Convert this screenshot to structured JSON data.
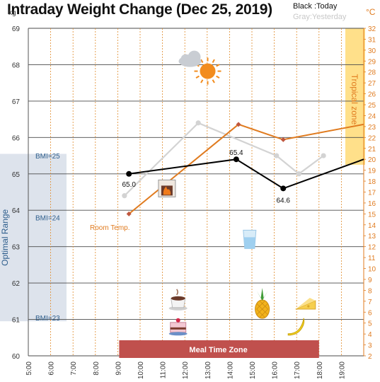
{
  "title": "Intraday Weight Change (Dec 25, 2019)",
  "legend": {
    "today": "Black :Today",
    "yesterday": "Gray:Yesterday"
  },
  "units": {
    "left": "kg",
    "right": "°C"
  },
  "colors": {
    "today": "#000000",
    "yesterday": "#d3d3d3",
    "room_temp": "#e07b1f",
    "room_temp_marker": "#c0573e",
    "optimal_band": "#dde3ec",
    "optimal_text": "#2e5e8c",
    "tropical_band": "#ffe08a",
    "tropical_text": "#e07b1f",
    "meal_band": "#c0504d",
    "grid": "#4a4a4a",
    "vgrid": "#e08a2a",
    "right_axis": "#e07b1f"
  },
  "chart_data": {
    "type": "line",
    "title": "Intraday Weight Change (Dec 25, 2019)",
    "x": {
      "tick_labels": [
        "5:00",
        "6:00",
        "7:00",
        "8:00",
        "9:00",
        "10:00",
        "11:00",
        "12:00",
        "13:00",
        "14:00",
        "15:00",
        "16:00",
        "17:00",
        "18:00",
        "19:00"
      ],
      "range_hours": [
        5,
        20
      ]
    },
    "y_left": {
      "label": "kg",
      "range": [
        60,
        69
      ],
      "ticks": [
        60,
        61,
        62,
        63,
        64,
        65,
        66,
        67,
        68,
        69
      ]
    },
    "y_right": {
      "label": "°C",
      "range": [
        2,
        32
      ]
    },
    "series": [
      {
        "name": "Black :Today",
        "axis": "left",
        "points": [
          [
            9.5,
            65.0
          ],
          [
            14.3,
            65.4
          ],
          [
            16.4,
            64.6
          ],
          [
            20,
            65.4
          ]
        ],
        "labels": [
          "65.0",
          "65.4",
          "64.6",
          ""
        ]
      },
      {
        "name": "Gray:Yesterday",
        "axis": "left",
        "points": [
          [
            9.3,
            64.4
          ],
          [
            12.6,
            66.4
          ],
          [
            16.1,
            65.5
          ],
          [
            17.1,
            65.0
          ],
          [
            18.2,
            65.5
          ]
        ]
      },
      {
        "name": "Room Temp.",
        "axis": "right",
        "points": [
          [
            9.5,
            15.0
          ],
          [
            14.4,
            23.2
          ],
          [
            16.4,
            21.8
          ],
          [
            20,
            23.2
          ]
        ]
      }
    ],
    "annotations": {
      "optimal_range": {
        "label": "Optimal Range",
        "y_range": [
          60.95,
          65.55
        ]
      },
      "bmi_lines": [
        {
          "label": "BMI=25",
          "y": 65.5
        },
        {
          "label": "BMI=24",
          "y": 63.8
        },
        {
          "label": "BMI=23",
          "y": 61.05
        }
      ],
      "tropical_zone": {
        "label": "Tropical zone",
        "c_range": [
          19.5,
          32
        ]
      },
      "meal_time_zone": {
        "label": "Meal Time Zone",
        "x_range": [
          9.0,
          18.0
        ]
      },
      "room_temp_label": "Room Temp."
    },
    "icons": [
      {
        "name": "weather-cloud-sun-icon",
        "x": 12.8,
        "y": 67.9
      },
      {
        "name": "fireplace-icon",
        "x": 11.2,
        "y": 64.6
      },
      {
        "name": "water-glass-icon",
        "x": 14.9,
        "y": 63.2
      },
      {
        "name": "coffee-cup-icon",
        "x": 11.7,
        "y": 61.5
      },
      {
        "name": "cake-icon",
        "x": 11.7,
        "y": 60.8
      },
      {
        "name": "pineapple-icon",
        "x": 15.4,
        "y": 61.4
      },
      {
        "name": "cheese-icon",
        "x": 17.4,
        "y": 61.4
      },
      {
        "name": "banana-icon",
        "x": 17.0,
        "y": 60.8
      }
    ]
  }
}
